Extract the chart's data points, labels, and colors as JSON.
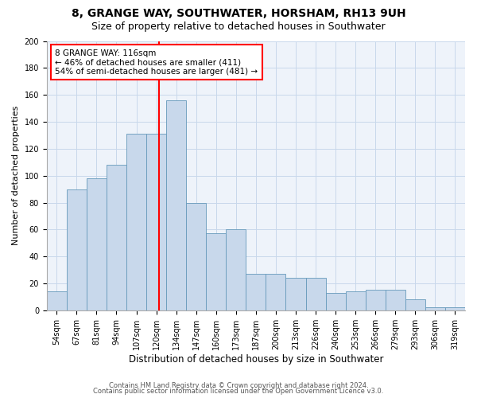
{
  "title1": "8, GRANGE WAY, SOUTHWATER, HORSHAM, RH13 9UH",
  "title2": "Size of property relative to detached houses in Southwater",
  "xlabel": "Distribution of detached houses by size in Southwater",
  "ylabel": "Number of detached properties",
  "categories": [
    "54sqm",
    "67sqm",
    "81sqm",
    "94sqm",
    "107sqm",
    "120sqm",
    "134sqm",
    "147sqm",
    "160sqm",
    "173sqm",
    "187sqm",
    "200sqm",
    "213sqm",
    "226sqm",
    "240sqm",
    "253sqm",
    "266sqm",
    "279sqm",
    "293sqm",
    "306sqm",
    "319sqm"
  ],
  "values": [
    14,
    90,
    98,
    108,
    131,
    131,
    156,
    80,
    57,
    60,
    27,
    27,
    24,
    24,
    13,
    14,
    15,
    15,
    8,
    2,
    2
  ],
  "bar_color": "#c8d8eb",
  "bar_edge_color": "#6699bb",
  "grid_color": "#c8d8eb",
  "background_color": "#eef3fa",
  "vline_x_index": 5.15,
  "vline_color": "red",
  "annotation_text": "8 GRANGE WAY: 116sqm\n← 46% of detached houses are smaller (411)\n54% of semi-detached houses are larger (481) →",
  "annotation_box_color": "white",
  "annotation_box_edge": "red",
  "ylim": [
    0,
    200
  ],
  "yticks": [
    0,
    20,
    40,
    60,
    80,
    100,
    120,
    140,
    160,
    180,
    200
  ],
  "footnote1": "Contains HM Land Registry data © Crown copyright and database right 2024.",
  "footnote2": "Contains public sector information licensed under the Open Government Licence v3.0.",
  "title1_fontsize": 10,
  "title2_fontsize": 9,
  "xlabel_fontsize": 8.5,
  "ylabel_fontsize": 8,
  "tick_fontsize": 7,
  "annotation_fontsize": 7.5,
  "footnote_fontsize": 6
}
